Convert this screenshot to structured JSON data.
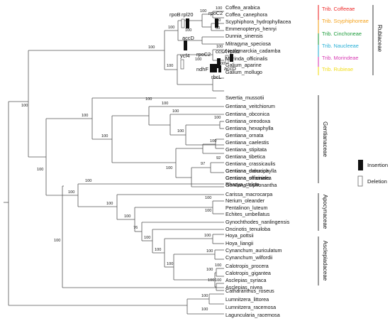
{
  "taxa": [
    "Coffea_arabica",
    "Coffea_canephora",
    "Scyphiphora_hydrophyllacea",
    "Emmenopterys_henryi",
    "Dunnia_sinensis",
    "Mitragyna_speciosa",
    "Neolamarckia_cadamba",
    "Morinda_officinalis",
    "Galium_aparine",
    "Galium_mollugo",
    "Swertia_mussotii",
    "Gentiana_veitchiorum",
    "Gentiana_obconica",
    "Gentiana_oreodoxa",
    "Gentiana_hexaphylla",
    "Gentiana_ornata",
    "Gentiana_caelestis",
    "Gentiana_stipitata",
    "Gentiana_tibetica",
    "Gentiana_crassicaulis",
    "Gentiana_dahurica",
    "Gentiana_officinalis",
    "Gentiana_siphonantha",
    "Gentiana_macrophylla",
    "Gentiana_straminea",
    "Rhazya_stricta",
    "Carissa_macrocarpa",
    "Nerium_oleander",
    "Pentalinon_luteum",
    "Echites_umbellatus",
    "Gynochthodes_nanlingensis",
    "Oncinotis_tenuiloba",
    "Hoya_pottsii",
    "Hoya_liangii",
    "Cynanchum_auriculatum",
    "Cynanchum_wilfordii",
    "Calotropis_procera",
    "Calotropis_gigantea",
    "Asclepias_syriaca",
    "Asclepias_nivea",
    "Catharanthus_roseus",
    "Lumnitzera_littorea",
    "Lumnitzera_racemosa",
    "Laguncularia_racemosa"
  ],
  "bootstrap": [
    "100",
    "100",
    "100",
    "80",
    "100",
    "100",
    "100",
    "100",
    "100",
    "100",
    "100",
    "100",
    "100",
    "100",
    "100",
    "100",
    "100",
    "100",
    "100",
    "92",
    "97",
    "100",
    "100",
    "100",
    "100",
    "100",
    "100",
    "100",
    "76",
    "100",
    "100",
    "100",
    "100",
    "100",
    "100",
    "100",
    "100",
    "100",
    "100",
    "100",
    "100",
    "100",
    "100"
  ],
  "markers": [
    "rpoB",
    "rpl20",
    "rpoC2",
    "accD",
    "ycf4",
    "rpoC2",
    "ccsA",
    "rpl32",
    "ndhF",
    "rbcL",
    "accD"
  ],
  "tribes": [
    {
      "label": "Trib. Coffeeae",
      "color": "#ee2b2b"
    },
    {
      "label": "Trib. Scyphiphoreae",
      "color": "#f4a21c"
    },
    {
      "label": "Trib. Cinchoneae",
      "color": "#1e9c3c"
    },
    {
      "label": "Trib. Naucleeae",
      "color": "#2bb0d6"
    },
    {
      "label": "Trib. Morindeae",
      "color": "#d83cb4"
    },
    {
      "label": "Trib. Rubieae",
      "color": "#f2dd1a"
    }
  ],
  "families": [
    "Rubiaceae",
    "Gentianaceae",
    "Apocynaceae",
    "Asclepiadaceae"
  ],
  "legend": {
    "insertion": "Insertion",
    "deletion": "Deletion"
  }
}
